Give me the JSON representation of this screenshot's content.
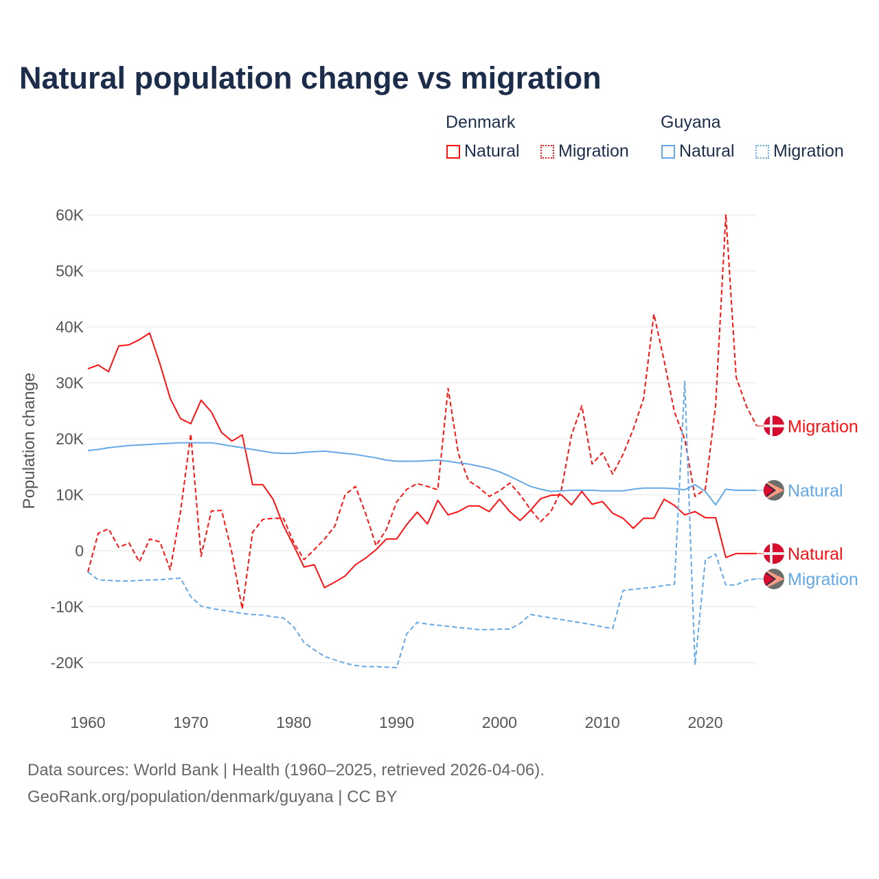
{
  "title": "Natural population change vs migration",
  "legend": {
    "groups": [
      {
        "name": "Denmark",
        "items": [
          "Natural",
          "Migration"
        ]
      },
      {
        "name": "Guyana",
        "items": [
          "Natural",
          "Migration"
        ]
      }
    ]
  },
  "colors": {
    "denmark": "#ff1010",
    "guyana": "#62a8e8",
    "text": "#1b2d4b",
    "grid": "#e6e6e6"
  },
  "footer": {
    "line1": "Data sources: World Bank | Health (1960–2025, retrieved 2026-04-06).",
    "line2": "GeoRank.org/population/denmark/guyana | CC BY"
  },
  "chart_data": {
    "type": "line",
    "title": "Natural population change vs migration",
    "xlabel": "",
    "ylabel": "Population change",
    "xlim": [
      1960,
      2025
    ],
    "ylim": [
      -25000,
      65000
    ],
    "yticks": [
      -20000,
      -10000,
      0,
      10000,
      20000,
      30000,
      40000,
      50000,
      60000
    ],
    "ytick_labels": [
      "-20K",
      "-10K",
      "0",
      "10K",
      "20K",
      "30K",
      "40K",
      "50K",
      "60K"
    ],
    "xticks": [
      1960,
      1970,
      1980,
      1990,
      2000,
      2010,
      2020
    ],
    "xtick_labels": [
      "1960",
      "1970",
      "1980",
      "1990",
      "2000",
      "2010",
      "2020"
    ],
    "grid": true,
    "legend_placement": "top-right",
    "x_start": 1960,
    "series": [
      {
        "name": "Natural",
        "country": "Denmark",
        "style": "solid",
        "color": "#ff1010",
        "end_label": "Natural",
        "flag": "denmark",
        "values_k": [
          32.5,
          33.2,
          32,
          36.6,
          36.8,
          37.7,
          38.9,
          33.4,
          27.2,
          23.6,
          22.7,
          26.9,
          24.8,
          21.1,
          19.6,
          20.7,
          11.8,
          11.8,
          9.2,
          4.5,
          0.9,
          -2.9,
          -2.5,
          -6.6,
          -5.6,
          -4.5,
          -2.5,
          -1.3,
          0.2,
          2.1,
          2.1,
          4.7,
          6.9,
          4.8,
          9,
          6.4,
          7,
          8,
          8,
          7,
          9.2,
          7,
          5.4,
          7.2,
          9.3,
          9.9,
          10,
          8.2,
          10.6,
          8.3,
          8.8,
          6.7,
          5.8,
          4,
          5.8,
          5.8,
          9.2,
          8.1,
          6.4,
          7,
          5.9,
          5.9,
          -1.2,
          -0.5,
          -0.5,
          -0.5
        ]
      },
      {
        "name": "Migration",
        "country": "Denmark",
        "style": "dashed",
        "color": "#ff1010",
        "end_label": "Migration",
        "flag": "denmark",
        "values_k": [
          -3.8,
          3.1,
          3.9,
          0.6,
          1.4,
          -2,
          2.1,
          1.6,
          -3.4,
          7,
          20.9,
          -1,
          7.1,
          7.2,
          -0.4,
          -10.4,
          3.3,
          5.6,
          5.8,
          5.8,
          1.5,
          -1.6,
          0.2,
          2.1,
          4.4,
          10,
          11.5,
          6.6,
          0.9,
          3.8,
          8.7,
          11,
          12,
          11.5,
          10.9,
          29,
          17.4,
          12.5,
          11.3,
          9.7,
          10.7,
          12.1,
          10,
          7.4,
          5.2,
          7,
          10.8,
          20.7,
          25.9,
          15.5,
          17.5,
          13.7,
          17.2,
          21.7,
          27.2,
          42.3,
          34,
          24.8,
          19.9,
          9.7,
          11,
          26,
          60.1,
          31,
          25.8,
          22.3
        ]
      },
      {
        "name": "Natural",
        "country": "Guyana",
        "style": "solid",
        "color": "#62a8e8",
        "end_label": "Natural",
        "flag": "guyana",
        "values_k": [
          17.9,
          18.1,
          18.4,
          18.6,
          18.8,
          18.9,
          19,
          19.1,
          19.2,
          19.3,
          19.3,
          19.3,
          19.3,
          19,
          18.7,
          18.4,
          18.1,
          17.8,
          17.5,
          17.4,
          17.4,
          17.6,
          17.7,
          17.8,
          17.6,
          17.4,
          17.2,
          16.9,
          16.6,
          16.2,
          16,
          16,
          16,
          16.1,
          16.2,
          16,
          15.7,
          15.5,
          15.1,
          14.7,
          14.1,
          13.3,
          12.4,
          11.5,
          11,
          10.6,
          10.7,
          10.8,
          10.8,
          10.8,
          10.7,
          10.7,
          10.7,
          11,
          11.2,
          11.2,
          11.2,
          11.1,
          10.9,
          11.8,
          10.6,
          8.2,
          11,
          10.8,
          10.8,
          10.8
        ]
      },
      {
        "name": "Migration",
        "country": "Guyana",
        "style": "dashed",
        "color": "#62a8e8",
        "end_label": "Migration",
        "flag": "guyana",
        "values_k": [
          -3.8,
          -5.2,
          -5.3,
          -5.4,
          -5.4,
          -5.3,
          -5.2,
          -5.2,
          -5,
          -4.9,
          -8.2,
          -9.9,
          -10.3,
          -10.6,
          -10.9,
          -11.2,
          -11.4,
          -11.5,
          -11.8,
          -12,
          -13.6,
          -16.4,
          -17.7,
          -18.9,
          -19.5,
          -20.1,
          -20.5,
          -20.7,
          -20.7,
          -20.8,
          -20.9,
          -14.8,
          -12.8,
          -13.1,
          -13.3,
          -13.5,
          -13.7,
          -13.9,
          -14.1,
          -14.1,
          -14,
          -14,
          -13,
          -11.4,
          -11.7,
          -12,
          -12.3,
          -12.6,
          -12.9,
          -13.2,
          -13.6,
          -13.9,
          -7.1,
          -6.9,
          -6.7,
          -6.5,
          -6.2,
          -6,
          30.3,
          -20.4,
          -1.6,
          -0.6,
          -6.1,
          -6.1,
          -5.3,
          -5
        ]
      }
    ]
  }
}
